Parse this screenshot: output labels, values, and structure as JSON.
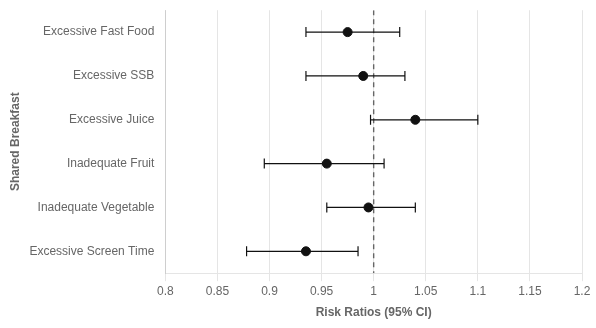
{
  "chart_data": {
    "type": "forest",
    "xlabel": "Risk Ratios (95% CI)",
    "ylabel": "Shared Breakfast",
    "categories": [
      "Excessive Fast Food",
      "Excessive SSB",
      "Excessive Juice",
      "Inadequate Fruit",
      "Inadequate Vegetable",
      "Excessive Screen Time"
    ],
    "values": [
      0.975,
      0.99,
      1.04,
      0.955,
      0.995,
      0.935
    ],
    "ci_low": [
      0.935,
      0.935,
      0.997,
      0.895,
      0.955,
      0.878
    ],
    "ci_high": [
      1.025,
      1.03,
      1.1,
      1.01,
      1.04,
      0.985
    ],
    "ref_line": 1.0,
    "color": "#111111",
    "xlim": [
      0.8,
      1.2
    ],
    "xticks": [
      0.8,
      0.85,
      0.9,
      0.95,
      1.0,
      1.05,
      1.1,
      1.15,
      1.2
    ],
    "grid": "x"
  }
}
